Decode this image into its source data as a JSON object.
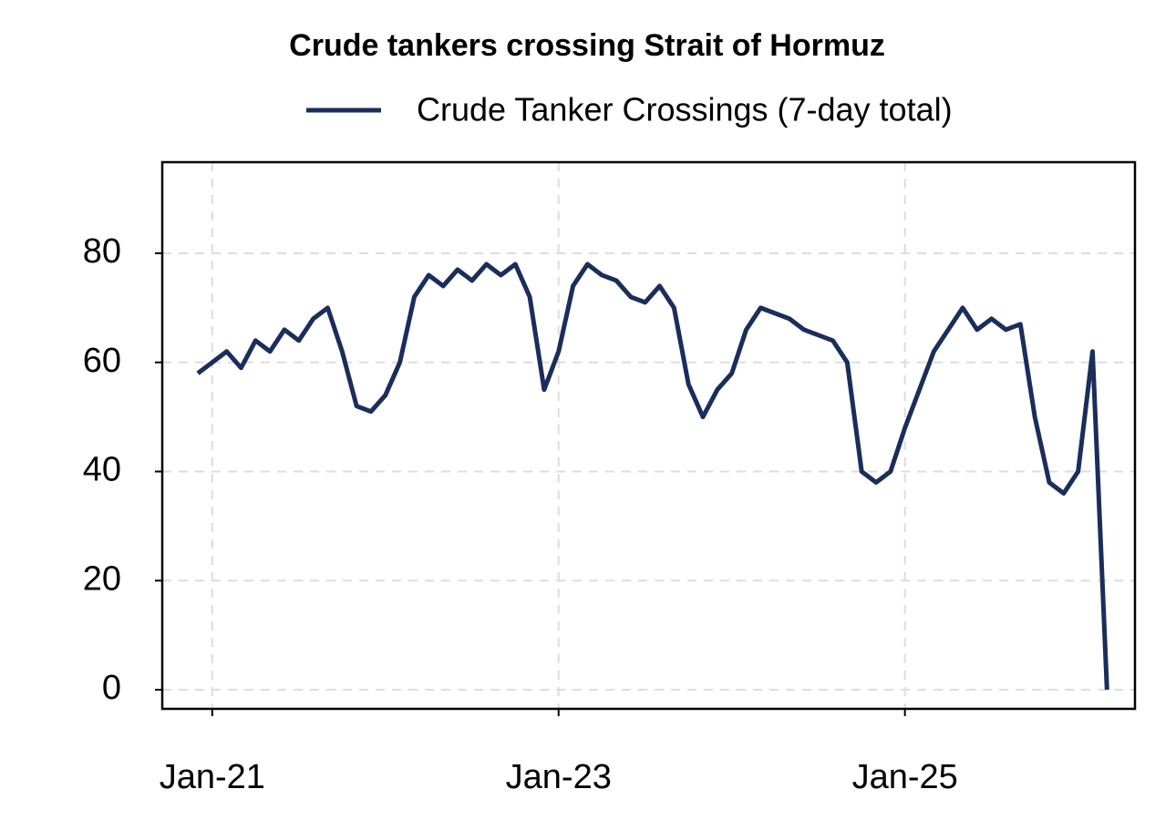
{
  "chart_data": {
    "type": "line",
    "title": "Crude tankers crossing Strait of Hormuz",
    "x": [
      "Dec-20",
      "Jan-21",
      "Feb-21",
      "Mar-21",
      "Apr-21",
      "May-21",
      "Jun-21",
      "Jul-21",
      "Aug-21",
      "Sep-21",
      "Oct-21",
      "Nov-21",
      "Dec-21",
      "Jan-22",
      "Feb-22",
      "Mar-22",
      "Apr-22",
      "May-22",
      "Jun-22",
      "Jul-22",
      "Aug-22",
      "Sep-22",
      "Oct-22",
      "Nov-22",
      "Dec-22",
      "Jan-23",
      "Feb-23",
      "Mar-23",
      "Apr-23",
      "May-23",
      "Jun-23",
      "Jul-23",
      "Aug-23",
      "Sep-23",
      "Oct-23",
      "Nov-23",
      "Dec-23",
      "Jan-24",
      "Feb-24",
      "Mar-24",
      "Apr-24",
      "May-24",
      "Jun-24",
      "Jul-24",
      "Aug-24",
      "Sep-24",
      "Oct-24",
      "Nov-24",
      "Dec-24",
      "Jan-25",
      "Feb-25",
      "Mar-25",
      "Apr-25",
      "May-25",
      "Jun-25",
      "Jul-25",
      "Aug-25",
      "Sep-25",
      "Oct-25",
      "Nov-25",
      "Dec-25",
      "Jan-26",
      "Feb-26",
      "Mar-26"
    ],
    "series": [
      {
        "name": "Crude Tanker Crossings (7-day total)",
        "color": "#1b2d5b",
        "values": [
          58,
          60,
          62,
          59,
          64,
          62,
          66,
          64,
          68,
          70,
          62,
          52,
          51,
          54,
          60,
          72,
          76,
          74,
          77,
          75,
          78,
          76,
          78,
          72,
          55,
          62,
          74,
          78,
          76,
          75,
          72,
          71,
          74,
          70,
          56,
          50,
          55,
          58,
          66,
          70,
          69,
          68,
          66,
          65,
          64,
          60,
          40,
          38,
          40,
          48,
          55,
          62,
          66,
          70,
          66,
          68,
          66,
          67,
          50,
          38,
          36,
          40,
          62,
          0
        ]
      }
    ],
    "ylim": [
      -3.5,
      96.7
    ],
    "yticks": [
      0,
      20,
      40,
      60,
      80
    ],
    "xticks": [
      "Jan-21",
      "Jan-23",
      "Jan-25"
    ],
    "grid": true
  }
}
